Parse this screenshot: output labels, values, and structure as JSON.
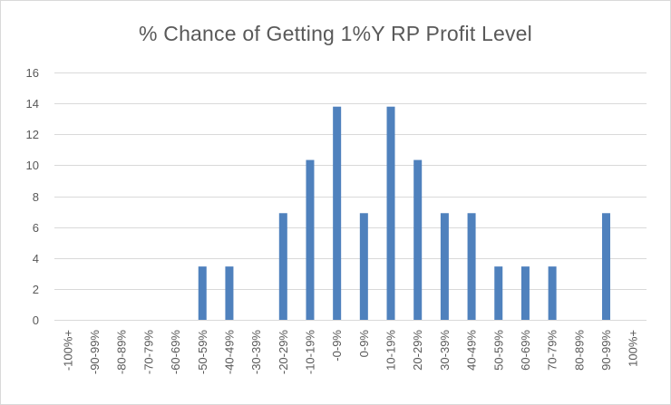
{
  "chart_data": {
    "type": "bar",
    "title": "% Chance of Getting 1%Y RP Profit Level",
    "xlabel": "",
    "ylabel": "",
    "ylim": [
      0,
      16
    ],
    "yticks": [
      0,
      2,
      4,
      6,
      8,
      10,
      12,
      14,
      16
    ],
    "grid": true,
    "legend": "none",
    "bar_color": "#4f81bd",
    "grid_color": "#d9d9d9",
    "categories": [
      "-100%+",
      "-90-99%",
      "-80-89%",
      "-70-79%",
      "-60-69%",
      "-50-59%",
      "-40-49%",
      "-30-39%",
      "-20-29%",
      "-10-19%",
      "-0-9%",
      "0-9%",
      "10-19%",
      "20-29%",
      "30-39%",
      "40-49%",
      "50-59%",
      "60-69%",
      "70-79%",
      "80-89%",
      "90-99%",
      "100%+"
    ],
    "values": [
      0,
      0,
      0,
      0,
      0,
      3.45,
      3.45,
      0,
      6.9,
      10.34,
      13.79,
      6.9,
      13.79,
      10.34,
      6.9,
      6.9,
      3.45,
      3.45,
      3.45,
      0,
      6.9,
      0
    ]
  }
}
